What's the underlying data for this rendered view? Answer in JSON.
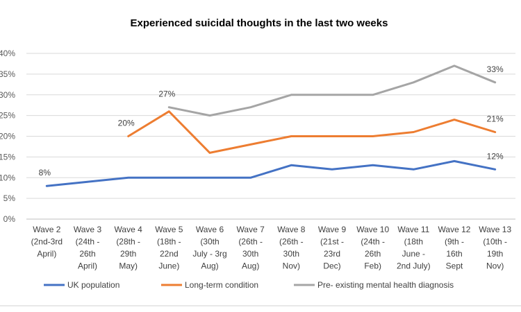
{
  "chart_data": {
    "type": "line",
    "title": "Experienced suicidal thoughts in the last two weeks",
    "xlabel": "",
    "ylabel": "",
    "ylim": [
      0,
      40
    ],
    "yticks": [
      "0%",
      "5%",
      "10%",
      "15%",
      "20%",
      "25%",
      "30%",
      "35%",
      "40%"
    ],
    "grid": true,
    "legend": "bottom",
    "categories": [
      [
        "Wave 2",
        "(2nd-3rd",
        "April)"
      ],
      [
        "Wave 3",
        "(24th -",
        "26th",
        "April)"
      ],
      [
        "Wave 4",
        "(28th -",
        "29th",
        "May)"
      ],
      [
        "Wave 5",
        "(18th -",
        "22nd",
        "June)"
      ],
      [
        "Wave 6",
        "(30th",
        "July - 3rg",
        "Aug)"
      ],
      [
        "Wave 7",
        "(26th -",
        "30th",
        "Aug)"
      ],
      [
        "Wave 8",
        "(26th -",
        "30th",
        "Nov)"
      ],
      [
        "Wave 9",
        "(21st -",
        "23rd",
        "Dec)"
      ],
      [
        "Wave 10",
        "(24th -",
        "26th",
        "Feb)"
      ],
      [
        "Wave 11",
        "(18th",
        "June -",
        "2nd July)"
      ],
      [
        "Wave 12",
        "(9th -",
        "16th",
        "Sept"
      ],
      [
        "Wave 13",
        "(10th -",
        "19th",
        "Nov)"
      ]
    ],
    "series": [
      {
        "name": "UK population",
        "color": "#4472c4",
        "values": [
          8,
          9,
          10,
          10,
          10,
          10,
          13,
          12,
          13,
          12,
          14,
          12
        ],
        "labels": [
          {
            "index": 0,
            "text": "8%"
          },
          {
            "index": 11,
            "text": "12%"
          }
        ]
      },
      {
        "name": "Long-term condition",
        "color": "#ed7d31",
        "values": [
          null,
          null,
          20,
          26,
          16,
          18,
          20,
          20,
          20,
          21,
          24,
          21
        ],
        "labels": [
          {
            "index": 2,
            "text": "20%"
          },
          {
            "index": 11,
            "text": "21%"
          }
        ]
      },
      {
        "name": "Pre- existing mental health diagnosis",
        "color": "#a5a5a5",
        "values": [
          null,
          null,
          null,
          27,
          25,
          27,
          30,
          30,
          30,
          33,
          37,
          33
        ],
        "labels": [
          {
            "index": 3,
            "text": "27%"
          },
          {
            "index": 11,
            "text": "33%"
          }
        ]
      }
    ]
  }
}
